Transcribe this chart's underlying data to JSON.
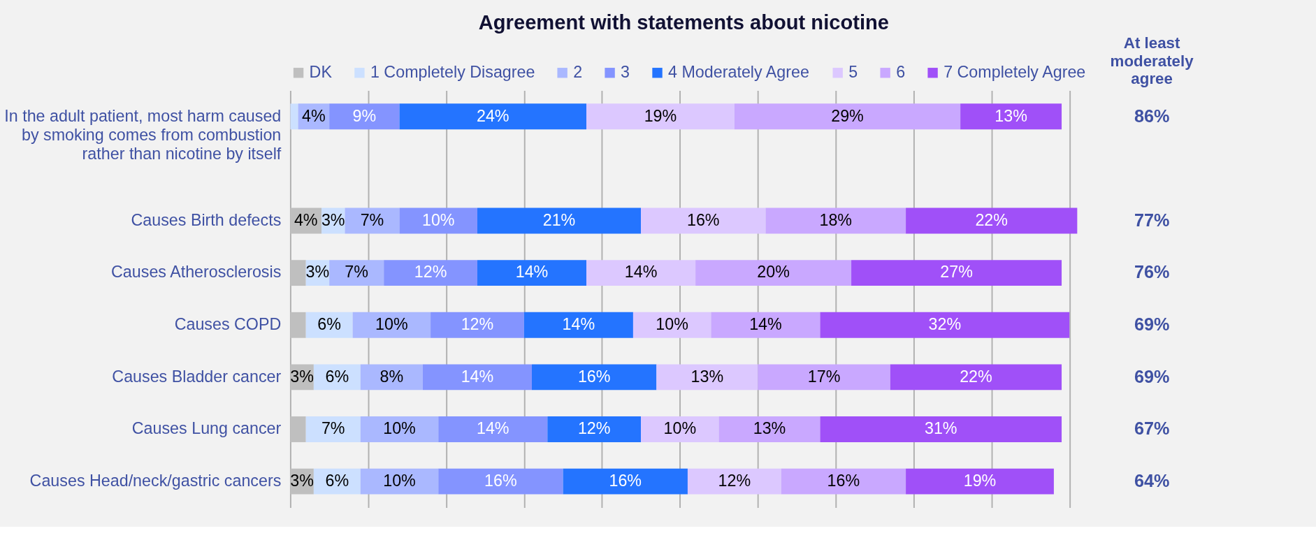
{
  "chart_data": {
    "type": "bar",
    "orientation": "horizontal",
    "stacked": true,
    "title": "Agreement with statements about nicotine",
    "categories": [
      "In the adult patient, most harm caused by smoking comes from combustion rather than nicotine by itself",
      null,
      "Causes Birth defects",
      "Causes Atherosclerosis",
      "Causes COPD",
      "Causes Bladder cancer",
      "Causes Lung cancer",
      "Causes Head/neck/gastric cancers"
    ],
    "series": [
      {
        "name": "DK",
        "color": "#bfbfbf",
        "values": [
          null,
          null,
          4,
          2,
          2,
          3,
          2,
          3
        ],
        "value_labels": [
          null,
          null,
          "4%",
          null,
          null,
          "3%",
          null,
          "3%"
        ]
      },
      {
        "name": "1 Completely Disagree",
        "color": "#cce0ff",
        "values": [
          1,
          null,
          3,
          3,
          6,
          6,
          7,
          6
        ],
        "value_labels": [
          null,
          null,
          "3%",
          "3%",
          "6%",
          "6%",
          "7%",
          "6%"
        ]
      },
      {
        "name": "2",
        "color": "#aab8ff",
        "values": [
          4,
          null,
          7,
          7,
          10,
          8,
          10,
          10
        ],
        "value_labels": [
          "4%",
          null,
          "7%",
          "7%",
          "10%",
          "8%",
          "10%",
          "10%"
        ]
      },
      {
        "name": "3",
        "color": "#8494ff",
        "values": [
          9,
          null,
          10,
          12,
          12,
          14,
          14,
          16
        ],
        "value_labels": [
          "9%",
          null,
          "10%",
          "12%",
          "12%",
          "14%",
          "14%",
          "16%"
        ]
      },
      {
        "name": "4 Moderately Agree",
        "color": "#2474ff",
        "values": [
          24,
          null,
          21,
          14,
          14,
          16,
          12,
          16
        ],
        "value_labels": [
          "24%",
          null,
          "21%",
          "14%",
          "14%",
          "16%",
          "12%",
          "16%"
        ]
      },
      {
        "name": "5",
        "color": "#dcc8ff",
        "values": [
          19,
          null,
          16,
          14,
          10,
          13,
          10,
          12
        ],
        "value_labels": [
          "19%",
          null,
          "16%",
          "14%",
          "10%",
          "13%",
          "10%",
          "12%"
        ]
      },
      {
        "name": "6",
        "color": "#c9a8ff",
        "values": [
          29,
          null,
          18,
          20,
          14,
          17,
          13,
          16
        ],
        "value_labels": [
          "29%",
          null,
          "18%",
          "20%",
          "14%",
          "17%",
          "13%",
          "16%"
        ]
      },
      {
        "name": "7 Completely Agree",
        "color": "#a050f8",
        "values": [
          13,
          null,
          22,
          27,
          32,
          22,
          31,
          19
        ],
        "value_labels": [
          "13%",
          null,
          "22%",
          "27%",
          "32%",
          "22%",
          "31%",
          "19%"
        ]
      }
    ],
    "annotations": [
      "At least moderately agree",
      "86%",
      "77%",
      "76%",
      "69%",
      "69%",
      "67%",
      "64%"
    ],
    "xlim": [
      0,
      101
    ],
    "xticks": [
      {
        "value": 0,
        "label": null
      },
      {
        "value": 10,
        "label": null
      },
      {
        "value": 20,
        "label": null
      },
      {
        "value": 30,
        "label": null
      },
      {
        "value": 40,
        "label": null
      },
      {
        "value": 50,
        "label": null
      },
      {
        "value": 60,
        "label": null
      },
      {
        "value": 70,
        "label": null
      },
      {
        "value": 80,
        "label": null
      },
      {
        "value": 90,
        "label": null
      },
      {
        "value": 100,
        "label": null
      }
    ],
    "grid": "x",
    "legend": "top"
  }
}
